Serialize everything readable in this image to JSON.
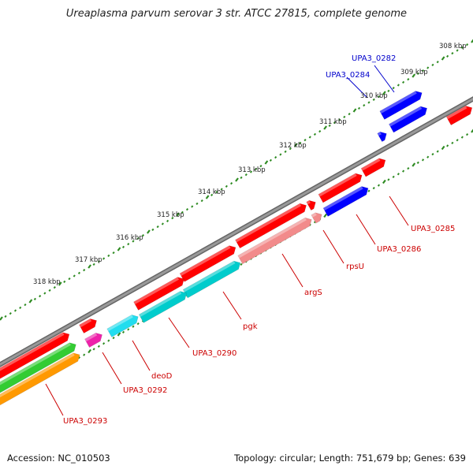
{
  "title": "Ureaplasma parvum serovar 3 str. ATCC 27815, complete genome",
  "footer": {
    "accession": "Accession: NC_010503",
    "summary": "Topology: circular; Length: 751,679 bp; Genes: 639"
  },
  "scale": {
    "ticks": [
      "308 kbp",
      "309 kbp",
      "310 kbp",
      "311 kbp",
      "312 kbp",
      "313 kbp",
      "314 kbp",
      "315 kbp",
      "316 kbp",
      "317 kbp",
      "318 kbp"
    ]
  },
  "genes": {
    "blue": [
      "UPA3_0282",
      "UPA3_0284"
    ],
    "red": [
      "UPA3_0285",
      "UPA3_0286",
      "rpsU",
      "argS",
      "pgk",
      "UPA3_0290",
      "deoD",
      "UPA3_0292",
      "UPA3_0293"
    ]
  },
  "colors": {
    "forward": "#ff0000",
    "reverse": "#0000ff",
    "backbone": "#888888",
    "tick": "#2e8b22",
    "cyan": "#00cccc",
    "lightcyan": "#22ddee",
    "pink": "#f28b8b",
    "magenta": "#ee22aa",
    "green": "#33cc33",
    "orange": "#ff9900"
  }
}
